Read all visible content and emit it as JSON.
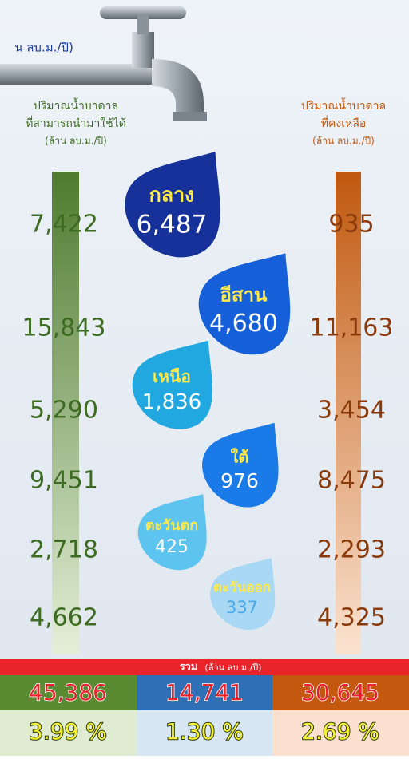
{
  "header": {
    "unit_partial": "น ลบ.ม./ปี)"
  },
  "left_header": [
    "ปริมาณน้ำบาดาล",
    "ที่สามารถนำมาใช้ได้",
    "(ล้าน ลบ.ม./ปี)"
  ],
  "right_header": [
    "ปริมาณน้ำบาดาล",
    "ที่คงเหลือ",
    "(ล้าน ลบ.ม./ปี)"
  ],
  "regions": [
    {
      "name": "กลาง",
      "usage": "6,487",
      "available": "7,422",
      "remaining": "935"
    },
    {
      "name": "อีสาน",
      "usage": "4,680",
      "available": "15,843",
      "remaining": "11,163"
    },
    {
      "name": "เหนือ",
      "usage": "1,836",
      "available": "5,290",
      "remaining": "3,454"
    },
    {
      "name": "ใต้",
      "usage": "976",
      "available": "9,451",
      "remaining": "8,475"
    },
    {
      "name": "ตะวันตก",
      "usage": "425",
      "available": "2,718",
      "remaining": "2,293"
    },
    {
      "name": "ตะวันออก",
      "usage": "337",
      "available": "4,662",
      "remaining": "4,325"
    }
  ],
  "total": {
    "label": "รวม",
    "unit": "(ล้าน ลบ.ม./ปี)",
    "available": "45,386",
    "usage": "14,741",
    "remaining": "30,645",
    "available_percent": "3.99 %",
    "usage_percent": "1.30 %",
    "remaining_percent": "2.69 %"
  }
}
